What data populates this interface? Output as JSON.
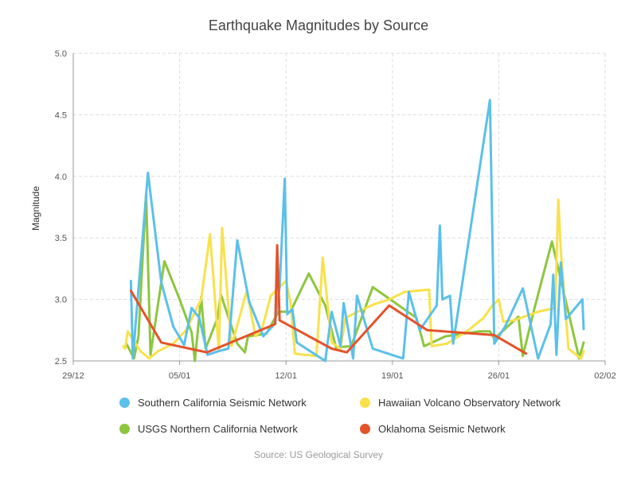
{
  "chart_data": {
    "type": "line",
    "title": "Earthquake Magnitudes by Source",
    "ylabel": "Magnitude",
    "xlabel": "",
    "xlim": [
      "2023-12-29",
      "2024-02-02"
    ],
    "ylim": [
      2.5,
      5.0
    ],
    "x_ticks": [
      {
        "date": "2023-12-29",
        "label": "29/12"
      },
      {
        "date": "2024-01-05",
        "label": "05/01"
      },
      {
        "date": "2024-01-12",
        "label": "12/01"
      },
      {
        "date": "2024-01-19",
        "label": "19/01"
      },
      {
        "date": "2024-01-26",
        "label": "26/01"
      },
      {
        "date": "2024-02-02",
        "label": "02/02"
      }
    ],
    "y_ticks": [
      2.5,
      3.0,
      3.5,
      4.0,
      4.5,
      5.0
    ],
    "grid": true,
    "legend_position": "bottom",
    "source": "Source: US Geological Survey",
    "series": [
      {
        "name": "Southern California Seismic Network",
        "color": "#5bc0eb",
        "points": [
          [
            "2024-01-01 19:00",
            3.15
          ],
          [
            "2024-01-01 22:00",
            2.52
          ],
          [
            "2024-01-02 22:00",
            4.03
          ],
          [
            "2024-01-03 19:00",
            3.14
          ],
          [
            "2024-01-04 14:00",
            2.78
          ],
          [
            "2024-01-05 07:00",
            2.63
          ],
          [
            "2024-01-05 19:00",
            2.93
          ],
          [
            "2024-01-06 07:00",
            2.85
          ],
          [
            "2024-01-06 20:00",
            2.55
          ],
          [
            "2024-01-07 14:00",
            2.58
          ],
          [
            "2024-01-08 05:00",
            2.6
          ],
          [
            "2024-01-08 19:00",
            3.48
          ],
          [
            "2024-01-09 14:00",
            2.98
          ],
          [
            "2024-01-10 12:00",
            2.7
          ],
          [
            "2024-01-11 06:00",
            2.8
          ],
          [
            "2024-01-11 14:00",
            3.1
          ],
          [
            "2024-01-11 22:00",
            3.98
          ],
          [
            "2024-01-12 02:00",
            2.88
          ],
          [
            "2024-01-12 10:00",
            2.92
          ],
          [
            "2024-01-12 17:00",
            2.65
          ],
          [
            "2024-01-14 14:00",
            2.5
          ],
          [
            "2024-01-15 00:00",
            2.9
          ],
          [
            "2024-01-15 14:00",
            2.62
          ],
          [
            "2024-01-15 19:00",
            2.97
          ],
          [
            "2024-01-16 10:00",
            2.52
          ],
          [
            "2024-01-16 16:00",
            3.03
          ],
          [
            "2024-01-17 17:00",
            2.6
          ],
          [
            "2024-01-19 17:00",
            2.52
          ],
          [
            "2024-01-20 02:00",
            3.06
          ],
          [
            "2024-01-20 19:00",
            2.75
          ],
          [
            "2024-01-21 22:00",
            2.95
          ],
          [
            "2024-01-22 03:00",
            3.6
          ],
          [
            "2024-01-22 07:00",
            3.0
          ],
          [
            "2024-01-22 19:00",
            3.03
          ],
          [
            "2024-01-23 00:00",
            2.64
          ],
          [
            "2024-01-25 10:00",
            4.62
          ],
          [
            "2024-01-25 17:00",
            2.64
          ],
          [
            "2024-01-26 10:00",
            2.78
          ],
          [
            "2024-01-27 14:00",
            3.09
          ],
          [
            "2024-01-28 14:00",
            2.52
          ],
          [
            "2024-01-29 10:00",
            2.8
          ],
          [
            "2024-01-29 14:00",
            3.2
          ],
          [
            "2024-01-29 19:00",
            2.55
          ],
          [
            "2024-01-30 02:00",
            3.3
          ],
          [
            "2024-01-30 10:00",
            2.84
          ],
          [
            "2024-01-31 12:00",
            3.0
          ],
          [
            "2024-01-31 14:00",
            2.76
          ]
        ]
      },
      {
        "name": "Hawaiian Volcano Observatory Network",
        "color": "#f9e14b",
        "points": [
          [
            "2024-01-01 07:00",
            2.62
          ],
          [
            "2024-01-01 10:00",
            2.6
          ],
          [
            "2024-01-01 14:00",
            2.74
          ],
          [
            "2024-01-02 10:00",
            2.58
          ],
          [
            "2024-01-03 00:00",
            2.52
          ],
          [
            "2024-01-03 14:00",
            2.58
          ],
          [
            "2024-01-04 14:00",
            2.64
          ],
          [
            "2024-01-05 10:00",
            2.75
          ],
          [
            "2024-01-06 10:00",
            3.0
          ],
          [
            "2024-01-07 00:00",
            3.53
          ],
          [
            "2024-01-07 14:00",
            2.58
          ],
          [
            "2024-01-07 19:00",
            3.58
          ],
          [
            "2024-01-08 10:00",
            2.62
          ],
          [
            "2024-01-09 10:00",
            3.07
          ],
          [
            "2024-01-10 00:00",
            2.7
          ],
          [
            "2024-01-10 10:00",
            2.76
          ],
          [
            "2024-01-11 00:00",
            3.03
          ],
          [
            "2024-01-11 14:00",
            3.1
          ],
          [
            "2024-01-12 00:00",
            3.15
          ],
          [
            "2024-01-12 07:00",
            2.98
          ],
          [
            "2024-01-12 14:00",
            2.56
          ],
          [
            "2024-01-13 07:00",
            2.55
          ],
          [
            "2024-01-14 00:00",
            2.54
          ],
          [
            "2024-01-14 10:00",
            3.34
          ],
          [
            "2024-01-15 00:00",
            2.65
          ],
          [
            "2024-01-15 14:00",
            2.6
          ],
          [
            "2024-01-15 22:00",
            2.85
          ],
          [
            "2024-01-16 17:00",
            2.9
          ],
          [
            "2024-01-17 19:00",
            2.96
          ],
          [
            "2024-01-18 19:00",
            3.0
          ],
          [
            "2024-01-19 19:00",
            3.06
          ],
          [
            "2024-01-21 10:00",
            3.08
          ],
          [
            "2024-01-21 14:00",
            2.62
          ],
          [
            "2024-01-22 14:00",
            2.64
          ],
          [
            "2024-01-24 00:00",
            2.75
          ],
          [
            "2024-01-25 00:00",
            2.85
          ],
          [
            "2024-01-25 14:00",
            2.95
          ],
          [
            "2024-01-26 00:00",
            3.0
          ],
          [
            "2024-01-26 07:00",
            2.82
          ],
          [
            "2024-01-27 00:00",
            2.83
          ],
          [
            "2024-01-28 14:00",
            2.9
          ],
          [
            "2024-01-29 17:00",
            2.93
          ],
          [
            "2024-01-29 22:00",
            3.81
          ],
          [
            "2024-01-30 02:00",
            3.4
          ],
          [
            "2024-01-30 14:00",
            2.6
          ],
          [
            "2024-01-31 10:00",
            2.52
          ],
          [
            "2024-01-31 14:00",
            2.58
          ]
        ]
      },
      {
        "name": "USGS Northern California Network",
        "color": "#8dc63f",
        "points": [
          [
            "2024-01-01 12:00",
            2.64
          ],
          [
            "2024-01-02 00:00",
            2.52
          ],
          [
            "2024-01-02 07:00",
            2.7
          ],
          [
            "2024-01-02 19:00",
            3.86
          ],
          [
            "2024-01-03 02:00",
            2.55
          ],
          [
            "2024-01-04 00:00",
            3.31
          ],
          [
            "2024-01-05 00:00",
            3.0
          ],
          [
            "2024-01-05 19:00",
            2.73
          ],
          [
            "2024-01-06 00:00",
            2.5
          ],
          [
            "2024-01-06 10:00",
            3.02
          ],
          [
            "2024-01-06 17:00",
            2.6
          ],
          [
            "2024-01-07 12:00",
            2.85
          ],
          [
            "2024-01-07 17:00",
            3.04
          ],
          [
            "2024-01-08 19:00",
            2.64
          ],
          [
            "2024-01-09 07:00",
            2.57
          ],
          [
            "2024-01-09 12:00",
            2.7
          ],
          [
            "2024-01-10 17:00",
            2.72
          ],
          [
            "2024-01-11 12:00",
            2.9
          ],
          [
            "2024-01-12 07:00",
            2.9
          ],
          [
            "2024-01-13 12:00",
            3.21
          ],
          [
            "2024-01-14 14:00",
            2.95
          ],
          [
            "2024-01-15 07:00",
            2.61
          ],
          [
            "2024-01-16 07:00",
            2.62
          ],
          [
            "2024-01-17 17:00",
            3.1
          ],
          [
            "2024-01-20 14:00",
            2.85
          ],
          [
            "2024-01-21 02:00",
            2.62
          ],
          [
            "2024-01-22 12:00",
            2.7
          ],
          [
            "2024-01-24 17:00",
            2.74
          ],
          [
            "2024-01-25 10:00",
            2.74
          ],
          [
            "2024-01-25 17:00",
            2.68
          ],
          [
            "2024-01-27 07:00",
            2.86
          ],
          [
            "2024-01-27 14:00",
            2.54
          ],
          [
            "2024-01-28 07:00",
            2.9
          ],
          [
            "2024-01-29 12:00",
            3.47
          ],
          [
            "2024-01-30 07:00",
            3.05
          ],
          [
            "2024-01-31 07:00",
            2.52
          ],
          [
            "2024-01-31 14:00",
            2.65
          ]
        ]
      },
      {
        "name": "Oklahoma Seismic Network",
        "color": "#e3532b",
        "points": [
          [
            "2024-01-01 19:00",
            3.07
          ],
          [
            "2024-01-03 19:00",
            2.65
          ],
          [
            "2024-01-06 19:00",
            2.57
          ],
          [
            "2024-01-11 07:00",
            2.8
          ],
          [
            "2024-01-11 10:00",
            3.44
          ],
          [
            "2024-01-11 14:00",
            2.83
          ],
          [
            "2024-01-15 00:00",
            2.6
          ],
          [
            "2024-01-16 00:00",
            2.57
          ],
          [
            "2024-01-18 19:00",
            2.95
          ],
          [
            "2024-01-21 07:00",
            2.75
          ],
          [
            "2024-01-25 17:00",
            2.71
          ],
          [
            "2024-01-27 19:00",
            2.56
          ]
        ]
      }
    ]
  }
}
